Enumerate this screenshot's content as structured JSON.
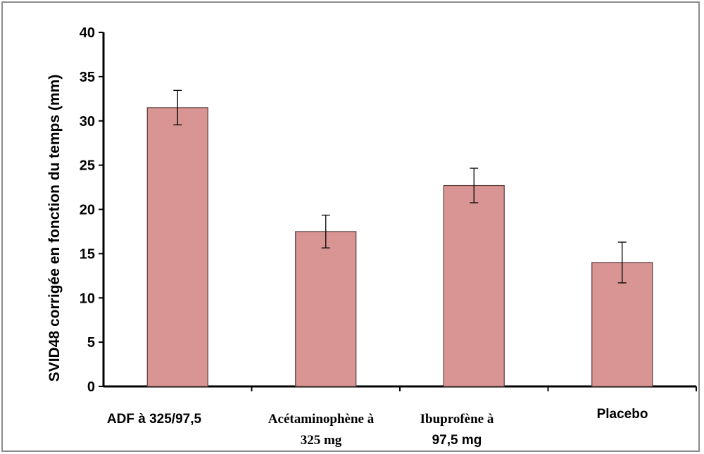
{
  "chart_data": {
    "type": "bar",
    "title": "",
    "xlabel": "",
    "ylabel": "SVID48 corrigée en fonction du temps (mm)",
    "ylim": [
      0,
      40
    ],
    "yticks": [
      0,
      5,
      10,
      15,
      20,
      25,
      30,
      35,
      40
    ],
    "categories": [
      [
        "ADF à 325/97,5"
      ],
      [
        "Acétaminophène à",
        "325 mg"
      ],
      [
        "Ibuprofène à",
        "97,5 mg"
      ],
      [
        "Placebo"
      ]
    ],
    "values": [
      31.5,
      17.5,
      22.7,
      14.0
    ],
    "error": [
      1.95,
      1.85,
      1.95,
      2.3
    ],
    "grid": false,
    "legend": "none",
    "colors": {
      "bar_fill": "#d99594",
      "bar_stroke": "#5a3a3a",
      "axis": "#000000"
    }
  }
}
